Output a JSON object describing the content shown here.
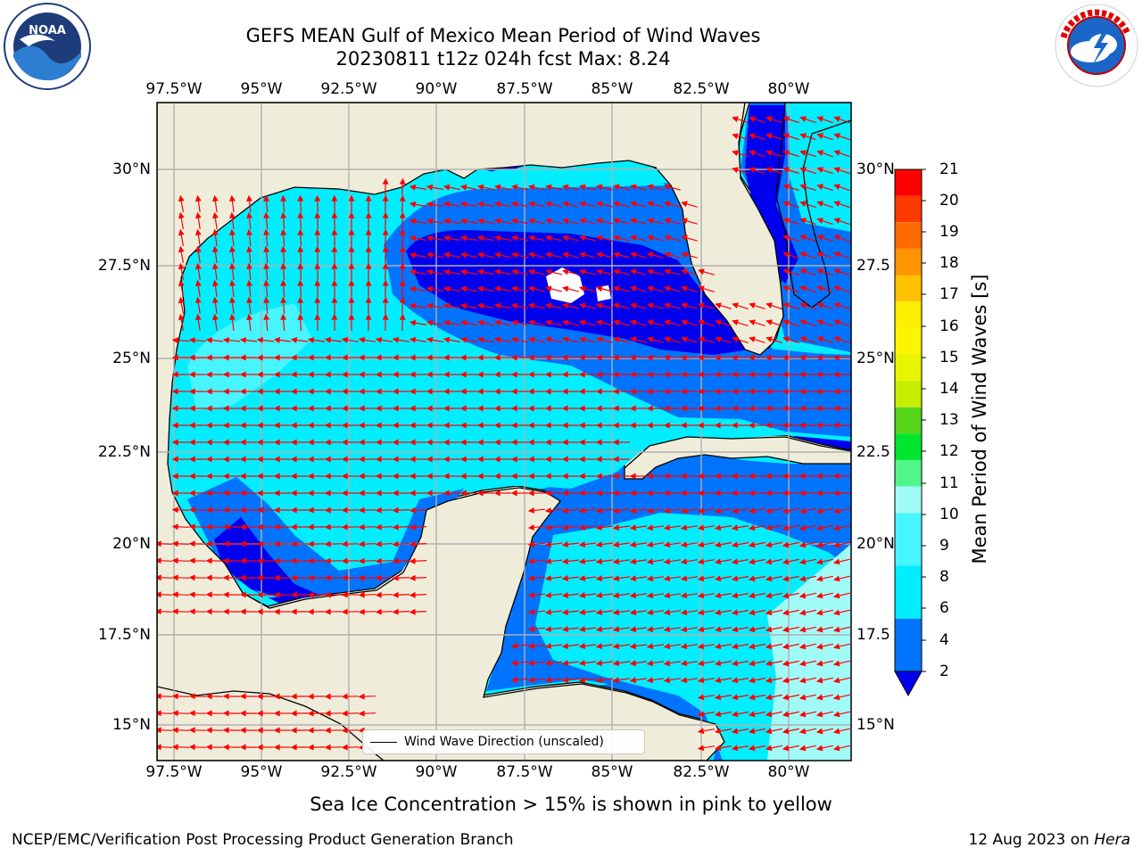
{
  "title": {
    "line1": "GEFS MEAN Gulf of Mexico Mean Period of Wind Waves",
    "line2": "20230811 t12z 024h fcst   Max: 8.24"
  },
  "logos": {
    "left": {
      "icon": "noaa-logo",
      "text": "NOAA"
    },
    "right": {
      "icon": "nws-logo",
      "text": "NATIONAL WEATHER SERVICE"
    }
  },
  "map": {
    "lon_labels": [
      "97.5°W",
      "95°W",
      "92.5°W",
      "90°W",
      "87.5°W",
      "85°W",
      "82.5°W",
      "80°W"
    ],
    "lat_labels_left": [
      "30°N",
      "27.5°N",
      "25°N",
      "22.5°N",
      "20°N",
      "17.5°N",
      "15°N"
    ],
    "lat_labels_right": [
      "30°N",
      "27.5",
      "25°N",
      "22.5",
      "20°N",
      "17.5",
      "15°N"
    ],
    "legend_label": "Wind Wave Direction (unscaled)",
    "colors": {
      "land": "#efedda",
      "nodata": "#ffffff",
      "grid": "#b0b0b0",
      "arrow": "#ff0000"
    }
  },
  "colorbar": {
    "title": "Mean Period of Wind Waves [s]",
    "tick_labels": [
      "2",
      "4",
      "6",
      "8",
      "9",
      "10",
      "11",
      "12",
      "13",
      "14",
      "15",
      "16",
      "17",
      "18",
      "19",
      "20",
      "21"
    ],
    "bands": [
      {
        "from": 0,
        "to": 2,
        "color": "#0000ee"
      },
      {
        "from": 2,
        "to": 4,
        "color": "#0073ff"
      },
      {
        "from": 4,
        "to": 6,
        "color": "#00eeff"
      },
      {
        "from": 6,
        "to": 8,
        "color": "#46f5ff"
      },
      {
        "from": 8,
        "to": 9,
        "color": "#a0fbf8"
      },
      {
        "from": 9,
        "to": 10,
        "color": "#52f58a"
      },
      {
        "from": 10,
        "to": 11,
        "color": "#00e52e"
      },
      {
        "from": 11,
        "to": 12,
        "color": "#55d61a"
      },
      {
        "from": 12,
        "to": 13,
        "color": "#c6ee00"
      },
      {
        "from": 13,
        "to": 14,
        "color": "#e9f500"
      },
      {
        "from": 14,
        "to": 15,
        "color": "#fbf500"
      },
      {
        "from": 15,
        "to": 16,
        "color": "#ffee00"
      },
      {
        "from": 16,
        "to": 17,
        "color": "#ffc000"
      },
      {
        "from": 17,
        "to": 18,
        "color": "#ff9500"
      },
      {
        "from": 18,
        "to": 19,
        "color": "#ff6a00"
      },
      {
        "from": 19,
        "to": 20,
        "color": "#ff3a00"
      },
      {
        "from": 20,
        "to": 21,
        "color": "#ff0000"
      }
    ]
  },
  "footer": {
    "note": "Sea Ice Concentration > 15% is shown in pink to yellow",
    "credit": "NCEP/EMC/Verification Post Processing Product Generation Branch",
    "date_prefix": "12 Aug 2023 on ",
    "machine": "Hera"
  }
}
